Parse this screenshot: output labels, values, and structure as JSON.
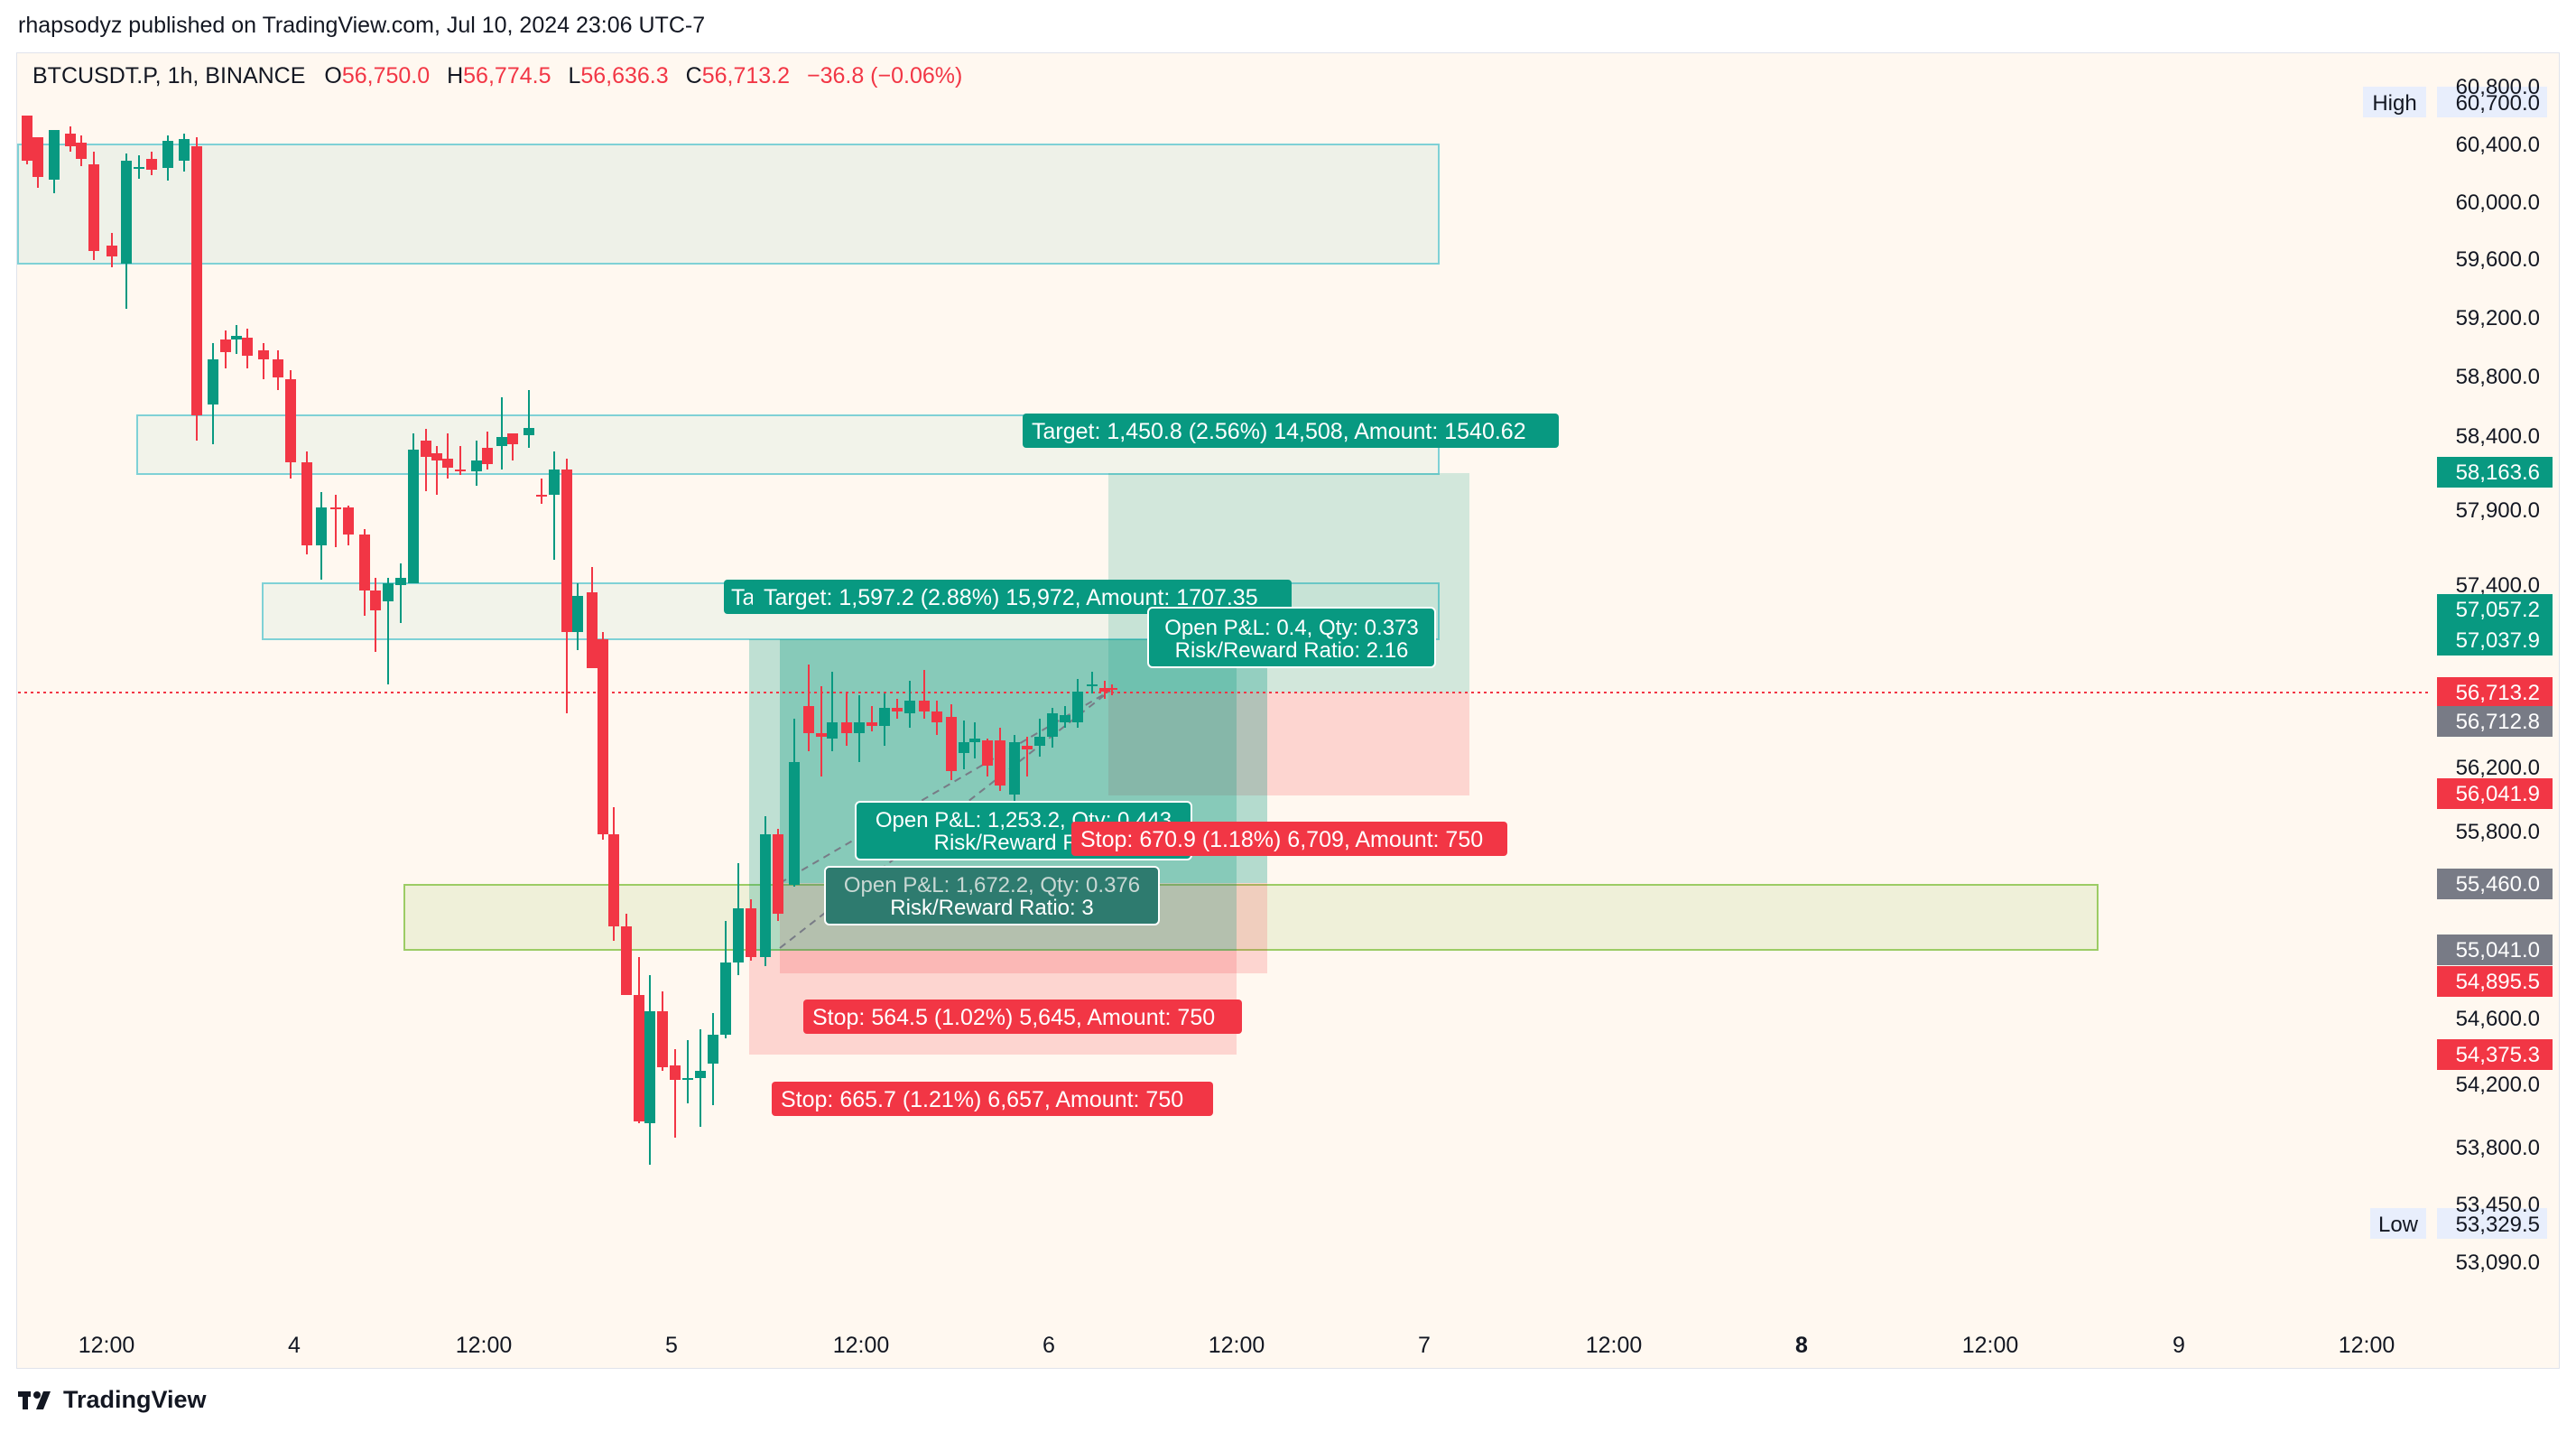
{
  "header": {
    "published": "rhapsodyz published on TradingView.com, Jul 10, 2024 23:06 UTC-7"
  },
  "legend": {
    "symbol": "BTCUSDT.P, 1h, BINANCE",
    "o_label": "O",
    "o_value": "56,750.0",
    "h_label": "H",
    "h_value": "56,774.5",
    "l_label": "L",
    "l_value": "56,636.3",
    "c_label": "C",
    "c_value": "56,713.2",
    "change": "−36.8 (−0.06%)"
  },
  "colors": {
    "up": "#089981",
    "down": "#f23645",
    "background": "#fff8f0",
    "neutral": "#787b86"
  },
  "price_axis": {
    "ticks": [
      "60,800.0",
      "60,400.0",
      "60,000.0",
      "59,600.0",
      "59,200.0",
      "58,800.0",
      "58,400.0",
      "57,900.0",
      "57,400.0",
      "56,200.0",
      "55,800.0",
      "54,600.0",
      "54,200.0",
      "53,800.0",
      "53,450.0",
      "53,090.0"
    ],
    "high_label": "High",
    "high_value": "60,700.0",
    "low_label": "Low",
    "low_value": "53,329.5",
    "badges": [
      {
        "text": "58,163.6",
        "color": "#089981"
      },
      {
        "text": "57,057.2",
        "color": "#089981"
      },
      {
        "text": "57,037.9",
        "color": "#089981"
      },
      {
        "text": "56,713.2",
        "color": "#f23645"
      },
      {
        "text": "56,712.8",
        "color": "#787b86"
      },
      {
        "text": "56,041.9",
        "color": "#f23645"
      },
      {
        "text": "55,460.0",
        "color": "#787b86"
      },
      {
        "text": "55,041.0",
        "color": "#787b86"
      },
      {
        "text": "54,895.5",
        "color": "#f23645"
      },
      {
        "text": "54,375.3",
        "color": "#f23645"
      }
    ]
  },
  "time_axis": {
    "labels": [
      "12:00",
      "4",
      "12:00",
      "5",
      "12:00",
      "6",
      "12:00",
      "7",
      "12:00",
      "8",
      "12:00",
      "9",
      "12:00"
    ]
  },
  "positions": {
    "target_1": "Target: 1,450.8 (2.56%) 14,508, Amount: 1540.62",
    "target_2": "Target: 1,597.2 (2.88%) 15,972, Amount: 1707.35",
    "target_2_stub": "Ta",
    "pnl_1_line1": "Open P&L: 0.4, Qty: 0.373",
    "pnl_1_line2": "Risk/Reward Ratio: 2.16",
    "pnl_2_line1": "Open P&L: 1,253.2, Qty: 0.443",
    "pnl_2_line2": "Risk/Reward Ratio",
    "pnl_3_line1": "Open P&L: 1,672.2, Qty: 0.376",
    "pnl_3_line2": "Risk/Reward Ratio: 3",
    "stop_1": "Stop: 670.9 (1.18%) 6,709, Amount: 750",
    "stop_2": "Stop: 564.5 (1.02%) 5,645, Amount: 750",
    "stop_3": "Stop: 665.7 (1.21%) 6,657, Amount: 750"
  },
  "footer": {
    "brand": "TradingView",
    "logo_icon": "tradingview-logo-icon"
  }
}
